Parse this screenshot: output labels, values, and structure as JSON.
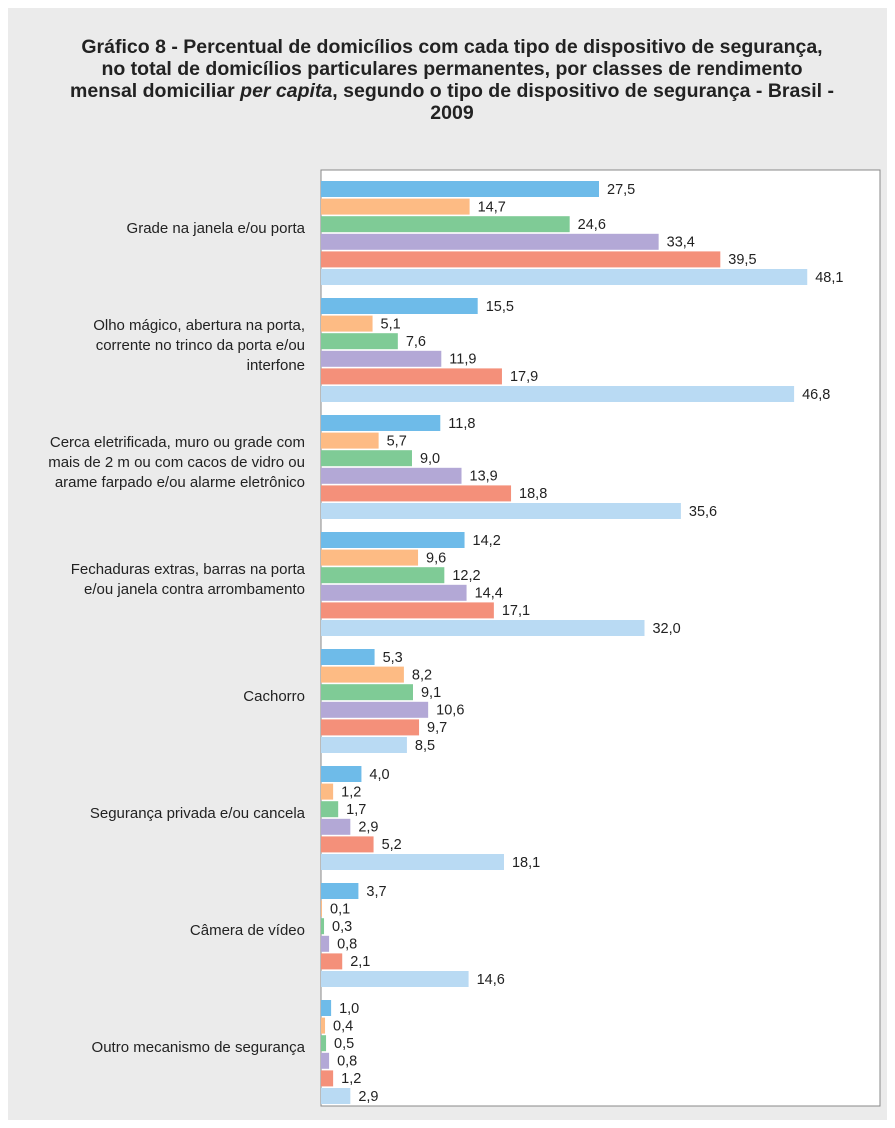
{
  "chart_data": {
    "type": "hbar",
    "title": [
      "Gráfico 8 - Percentual de domicílios com cada tipo de dispositivo de segurança, no total de domicílios particulares permanentes, por classes de rendimento mensal domiciliar",
      "per capita",
      ", segundo o tipo de dispositivo de segurança - Brasil - 2009"
    ],
    "categories": [
      "Grade na janela e/ou porta",
      "Olho mágico, abertura na porta, corrente no trinco da porta e/ou interfone",
      "Cerca eletrificada, muro ou grade com mais de 2 m ou com cacos de vidro ou arame farpado e/ou alarme eletrônico",
      "Fechaduras extras, barras na porta e/ou janela contra arrombamento",
      "Cachorro",
      "Segurança privada e/ou cancela",
      "Câmera de vídeo",
      "Outro mecanismo de segurança"
    ],
    "xlim": [
      0,
      55
    ],
    "series": [
      {
        "color": "#6ebbe9",
        "values": [
          27.5,
          15.5,
          11.8,
          14.2,
          5.3,
          4.0,
          3.7,
          1.0
        ],
        "value_labels": [
          "27,5",
          "15,5",
          "11,8",
          "14,2",
          "5,3",
          "4,0",
          "3,7",
          "1,0"
        ]
      },
      {
        "color": "#fdbb84",
        "values": [
          14.7,
          5.1,
          5.7,
          9.6,
          8.2,
          1.2,
          0.1,
          0.4
        ],
        "value_labels": [
          "14,7",
          "5,1",
          "5,7",
          "9,6",
          "8,2",
          "1,2",
          "0,1",
          "0,4"
        ]
      },
      {
        "color": "#7fcb96",
        "values": [
          24.6,
          7.6,
          9.0,
          12.2,
          9.1,
          1.7,
          0.3,
          0.5
        ],
        "value_labels": [
          "24,6",
          "7,6",
          "9,0",
          "12,2",
          "9,1",
          "1,7",
          "0,3",
          "0,5"
        ]
      },
      {
        "color": "#b3a8d6",
        "values": [
          33.4,
          11.9,
          13.9,
          14.4,
          10.6,
          2.9,
          0.8,
          0.8
        ],
        "value_labels": [
          "33,4",
          "11,9",
          "13,9",
          "14,4",
          "10,6",
          "2,9",
          "0,8",
          "0,8"
        ]
      },
      {
        "color": "#f4907a",
        "values": [
          39.5,
          17.9,
          18.8,
          17.1,
          9.7,
          5.2,
          2.1,
          1.2
        ],
        "value_labels": [
          "39,5",
          "17,9",
          "18,8",
          "17,1",
          "9,7",
          "5,2",
          "2,1",
          "1,2"
        ]
      },
      {
        "color": "#b9daf3",
        "values": [
          48.1,
          46.8,
          35.6,
          32.0,
          8.5,
          18.1,
          14.6,
          2.9
        ],
        "value_labels": [
          "48,1",
          "46,8",
          "35,6",
          "32,0",
          "8,5",
          "18,1",
          "14,6",
          "2,9"
        ]
      }
    ]
  }
}
